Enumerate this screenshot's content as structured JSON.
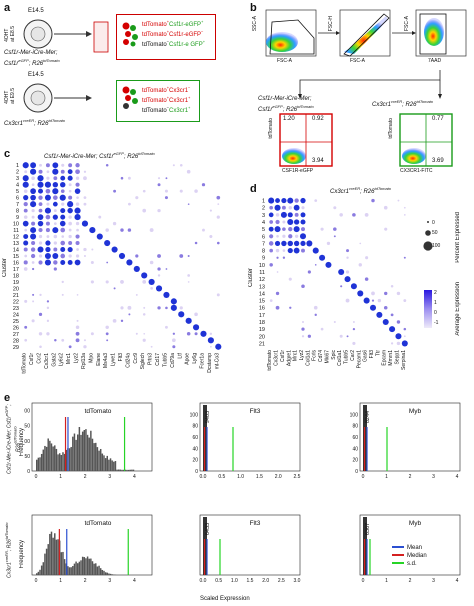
{
  "panel_a": {
    "letter": "a",
    "scheme1": {
      "stage": "E14.5",
      "injection_label": "4OHT\nat E8.5",
      "genotype_line1": "Csf1r-Mer-iCre-Mer;",
      "genotype_line2": "Csf1r",
      "genotype_sup2": "eGFP",
      "genotype_line2b": "; R26",
      "genotype_sup2b": "tdTomato",
      "out1": "tdTomato",
      "out1b": "Csf1r-eGFP",
      "out2": "tdTomato",
      "out2b": "Csf1r-eGFP",
      "out3": "tdTomato",
      "out3b": "Csf1r-e GFP"
    },
    "scheme2": {
      "stage": "E14.5",
      "injection_label": "4OHT\nat E9.5",
      "genotype_a": "Cx3cr1",
      "genotype_sup_a": "creER",
      "genotype_b": "; R26",
      "genotype_sup_b": "tdTomato",
      "out1": "tdTomato",
      "out1b": "Cx3cr1",
      "out2": "tdTomato",
      "out2b": "Cx3cr1",
      "out3": "tdTomato",
      "out3b": "Cx3cr1"
    }
  },
  "panel_b": {
    "letter": "b",
    "plots": [
      {
        "ylabel": "SSC-A",
        "xlabel": "FSC-A"
      },
      {
        "ylabel": "FSC-H",
        "xlabel": "FSC-A"
      },
      {
        "ylabel": "FSC-A",
        "xlabel": "7AAD"
      }
    ],
    "left_title_a": "Csf1r-Mer-iCre-Mer;",
    "left_title_b": "Csf1r",
    "left_title_sup_b": "eGFP",
    "left_title_c": "; R26",
    "left_title_sup_c": "tdTomato",
    "right_title_a": "Cx3cr1",
    "right_title_sup_a": "creER",
    "right_title_b": "; R26",
    "right_title_sup_b": "tdTomato",
    "left_quad": {
      "ul": "1.20",
      "ur": "0.92",
      "lr": "3.94",
      "ylabel": "tdTomato",
      "xlabel": "CSF1R-eGFP"
    },
    "right_quad": {
      "ul": "",
      "ur": "0.77",
      "lr": "3.69",
      "ylabel": "tdTomato",
      "xlabel": "CX3CR1-FITC"
    }
  },
  "panel_c": {
    "letter": "c",
    "title_a": "Csf1r-Mer-iCre-Mer; Csf1r",
    "title_sup_a": "eGFP",
    "title_b": "; R26",
    "title_sup_b": "tdTomato",
    "ylabel": "Cluster",
    "clusters": [
      "1",
      "2",
      "3",
      "4",
      "5",
      "6",
      "7",
      "8",
      "9",
      "10",
      "11",
      "12",
      "13",
      "14",
      "15",
      "16",
      "17",
      "18",
      "19",
      "20",
      "21",
      "22",
      "23",
      "24",
      "25",
      "26",
      "27",
      "28",
      "29"
    ],
    "genes": [
      "tdTomato",
      "Csf1r",
      "Ccr2",
      "Cx3cr1",
      "Gata2",
      "Ly6c2",
      "Mrc1",
      "Lyz2",
      "Rpl13a",
      "Mpo",
      "Elane",
      "Ms4a3",
      "Lyve1",
      "Flt3",
      "Cd24a",
      "Ccr9",
      "Siglech",
      "Prtn3",
      "Ccl17",
      "Ccr7",
      "Cd74",
      "Fcgr1",
      "Tubb5",
      "Ltf",
      "Ctsg",
      "Apoe",
      "Kit",
      "Hbb-y",
      "Fcer1a",
      "Dcstamp",
      "Xist",
      "Lyz1",
      "Pf4",
      "Cd209a",
      "Gzma",
      "Cd79a",
      "Ly6g",
      "Fcer1a"
    ],
    "axis_genes_shown": [
      "tdTomato",
      "Csf1r",
      "Ccr2",
      "Cx3cr1",
      "Gata2",
      "Ly6c2",
      "Mrc1",
      "Lyz2",
      "Rpl13a",
      "Mpo",
      "Elane",
      "Ms4a3",
      "Lyve1",
      "Flt3",
      "Cd24a",
      "Ccr9",
      "Siglech",
      "Prtn3",
      "Ccl17",
      "Tubb5",
      "Cd79a",
      "Ltf",
      "Apoe",
      "Ly6g",
      "Fcer1a",
      "Dcstamp",
      "mt-Co3"
    ]
  },
  "panel_d": {
    "letter": "d",
    "title_a": "Cx3cr1",
    "title_sup_a": "creER",
    "title_b": "; R26",
    "title_sup_b": "tdTomato",
    "ylabel": "Cluster",
    "clusters": [
      "1",
      "2",
      "3",
      "4",
      "5",
      "6",
      "7",
      "8",
      "9",
      "10",
      "11",
      "12",
      "13",
      "14",
      "15",
      "16",
      "17",
      "18",
      "19",
      "20",
      "21"
    ],
    "genes": [
      "tdTomato",
      "Cx3cr1",
      "Csf1r",
      "Adgre1",
      "Mrc1",
      "Lyz2",
      "Col1a1",
      "Fcrls",
      "Cd74",
      "Mki67",
      "Spic",
      "Col1a1",
      "Tubb5",
      "Car2",
      "Pecam1",
      "Gas6",
      "Flt3",
      "Ttr",
      "Epcam",
      "Mmrn1",
      "Sepp1",
      "Serpina1"
    ],
    "legend_percent_title": "Percent Expressed",
    "legend_percent": [
      "0",
      "50",
      "100"
    ],
    "legend_avg_title": "Average Expression",
    "legend_avg_ticks": [
      "2",
      "1",
      "0",
      "-1"
    ]
  },
  "panel_e": {
    "letter": "e",
    "row1_label_a": "Csf1r-Mer-iCre-Mer;",
    "row1_label_b": "Csf1r",
    "row1_label_sup_b": "eGFP",
    "row1_label_c": "; R26",
    "row1_label_sup_c": "tdTomato",
    "row2_label_a": "Cx3cr1",
    "row2_label_sup_a": "creER",
    "row2_label_b": "; R26",
    "row2_label_sup_b": "tdTomato",
    "ylabel": "Frequency",
    "xlabel": "Scaled Expression",
    "hist_titles": [
      "tdTomato",
      "Flt3",
      "Myb"
    ],
    "row1_annots": {
      "flt3": "9403",
      "myb": "8244"
    },
    "row2_annots": {
      "flt3": "6433",
      "myb": "6367"
    },
    "legend": [
      {
        "label": "Mean",
        "color": "#2b4fd1"
      },
      {
        "label": "Median",
        "color": "#d42020"
      },
      {
        "label": "s.d.",
        "color": "#26d426"
      }
    ],
    "tdtomato_xticks": [
      "0",
      "1",
      "2",
      "3",
      "4"
    ],
    "flt3_xticks_row1": [
      "0.0",
      "0.5",
      "1.0",
      "1.5",
      "2.0",
      "2.5"
    ],
    "flt3_xticks_row2": [
      "0.0",
      "0.5",
      "1.0",
      "1.5",
      "2.0",
      "2.5",
      "3.0"
    ],
    "myb_xticks": [
      "0",
      "1",
      "2",
      "3",
      "4"
    ],
    "yticks_td": [
      "0",
      "50",
      "100",
      "150",
      "200"
    ],
    "yticks_flt3_row1": [
      "0",
      "20",
      "40",
      "60",
      "80",
      "100"
    ],
    "yticks_myb": [
      "0",
      "20",
      "40",
      "60",
      "80",
      "100"
    ]
  },
  "colors": {
    "dot_dark": "#1f33d6",
    "dot_mid": "#8a7be0",
    "dot_light": "#dcd2f3",
    "mean": "#2b4fd1",
    "median": "#d42020",
    "sd": "#26d426",
    "gate_red": "#d40000",
    "gate_green": "#1a9b1a"
  }
}
